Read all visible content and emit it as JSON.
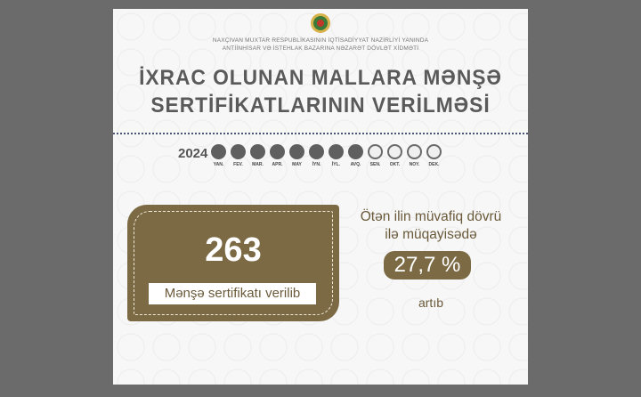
{
  "org": {
    "line1": "NAXÇIVAN MUXTAR RESPUBLİKASININ İQTİSADİYYAT NAZİRLİYİ YANINDA",
    "line2": "ANTİİNHİSAR VƏ İSTEHLAK BAZARINA NƏZARƏT DÖVLƏT XİDMƏTİ"
  },
  "title": {
    "line1": "İXRAC OLUNAN MALLARA MƏNŞƏ",
    "line2": "SERTİFİKATLARININ VERİLMƏSİ"
  },
  "year": "2024",
  "months": [
    {
      "label": "YAN.",
      "filled": true
    },
    {
      "label": "FEV.",
      "filled": true
    },
    {
      "label": "MAR.",
      "filled": true
    },
    {
      "label": "APR.",
      "filled": true
    },
    {
      "label": "MAY",
      "filled": true
    },
    {
      "label": "İYN.",
      "filled": true
    },
    {
      "label": "İYL.",
      "filled": true
    },
    {
      "label": "AVQ.",
      "filled": true
    },
    {
      "label": "SEN.",
      "filled": false
    },
    {
      "label": "OKT.",
      "filled": false
    },
    {
      "label": "NOY.",
      "filled": false
    },
    {
      "label": "DEK.",
      "filled": false
    }
  ],
  "stat": {
    "value": "263",
    "label": "Mənşə sertifikatı verilib"
  },
  "comparison": {
    "line1": "Ötən ilin müvafiq dövrü",
    "line2": "ilə müqayisədə",
    "percent": "27,7 %",
    "suffix": "artıb"
  },
  "colors": {
    "brand": "#7c6a45",
    "filled": "#5f5f5f"
  }
}
